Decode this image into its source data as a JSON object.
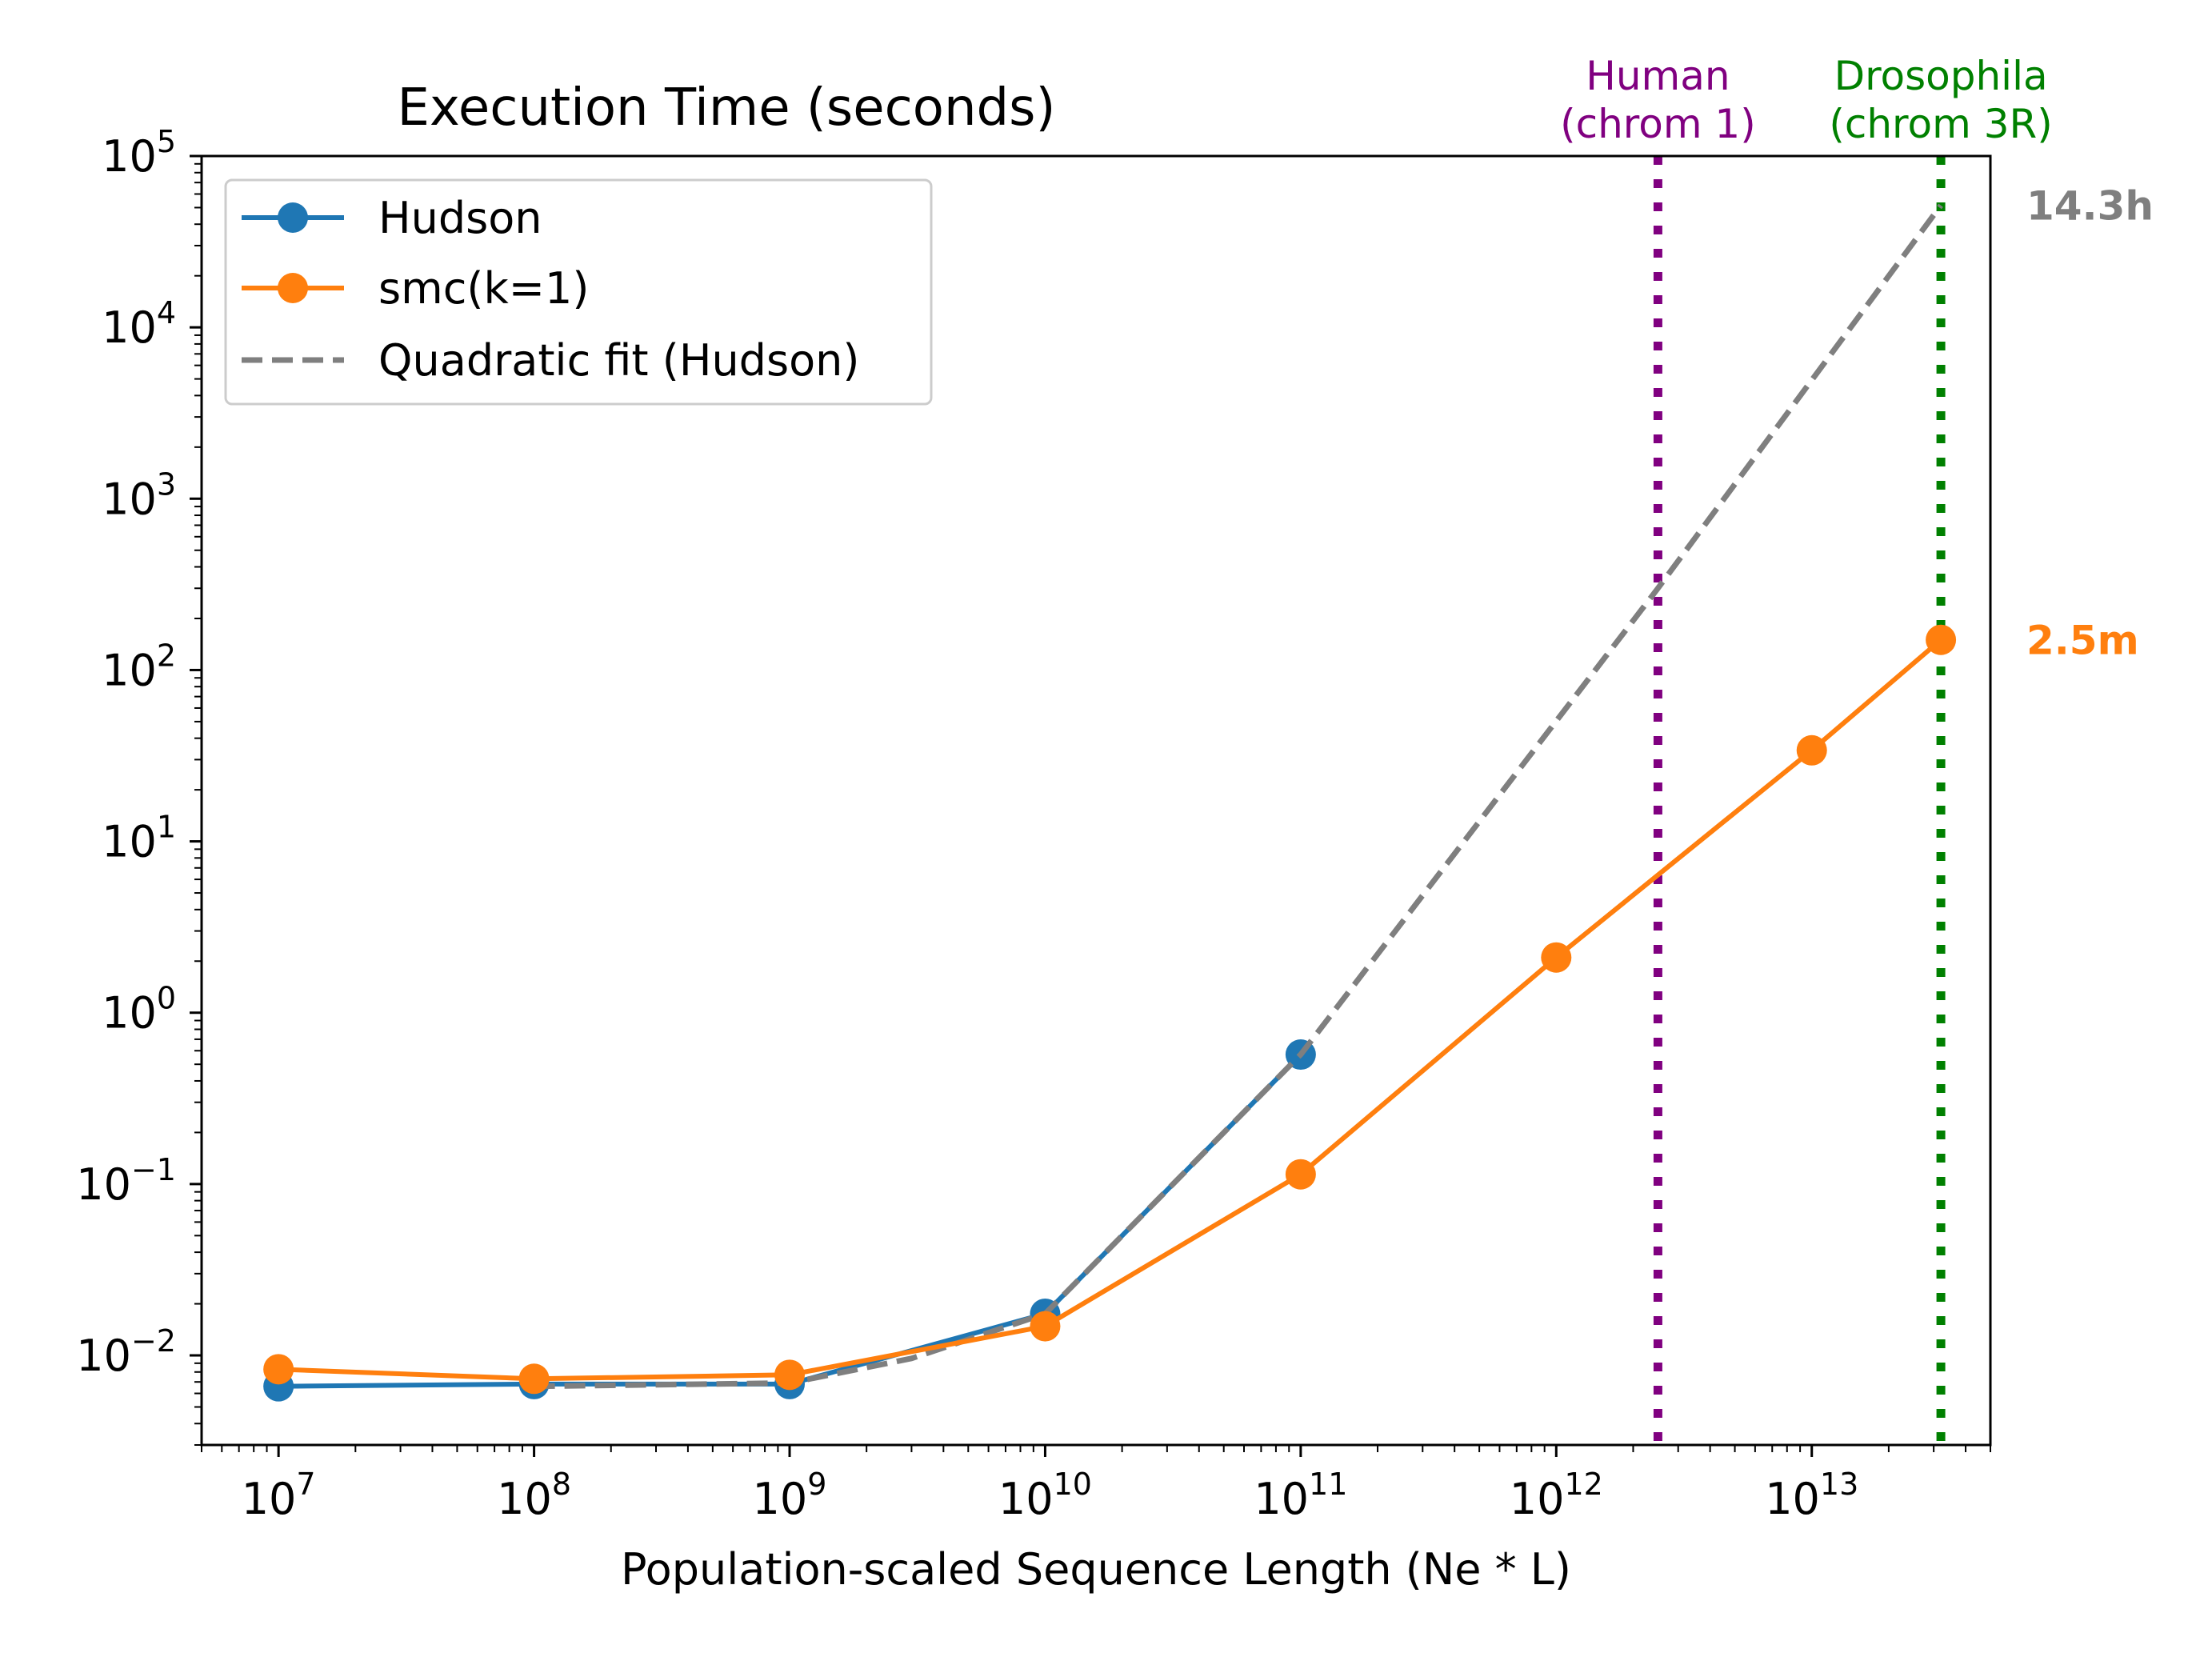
{
  "chart_data": {
    "type": "line",
    "title": "Execution Time (seconds)",
    "xlabel": "Population-scaled Sequence Length (Ne * L)",
    "ylabel": "",
    "xscale": "log",
    "yscale": "log",
    "xlim": [
      5000000,
      50000000000000
    ],
    "ylim": [
      0.003,
      100000
    ],
    "x_ticks": [
      {
        "base": "10",
        "exp": "7",
        "value": 10000000
      },
      {
        "base": "10",
        "exp": "8",
        "value": 100000000
      },
      {
        "base": "10",
        "exp": "9",
        "value": 1000000000
      },
      {
        "base": "10",
        "exp": "10",
        "value": 10000000000
      },
      {
        "base": "10",
        "exp": "11",
        "value": 100000000000
      },
      {
        "base": "10",
        "exp": "12",
        "value": 1000000000000
      },
      {
        "base": "10",
        "exp": "13",
        "value": 10000000000000
      }
    ],
    "y_ticks": [
      {
        "base": "10",
        "exp": "−2",
        "value": 0.01
      },
      {
        "base": "10",
        "exp": "−1",
        "value": 0.1
      },
      {
        "base": "10",
        "exp": "0",
        "value": 1
      },
      {
        "base": "10",
        "exp": "1",
        "value": 10
      },
      {
        "base": "10",
        "exp": "2",
        "value": 100
      },
      {
        "base": "10",
        "exp": "3",
        "value": 1000
      },
      {
        "base": "10",
        "exp": "4",
        "value": 10000
      },
      {
        "base": "10",
        "exp": "5",
        "value": 100000
      }
    ],
    "series": [
      {
        "name": "Hudson",
        "color": "#1f77b4",
        "style": "solid-markers",
        "x": [
          10000000,
          100000000,
          1000000000,
          10000000000,
          100000000000
        ],
        "y": [
          0.0066,
          0.0068,
          0.0068,
          0.0175,
          0.57
        ]
      },
      {
        "name": "smc(k=1)",
        "color": "#ff7f0e",
        "style": "solid-markers",
        "x": [
          10000000,
          100000000,
          1000000000,
          10000000000,
          100000000000,
          1000000000000,
          10000000000000,
          32000000000000
        ],
        "y": [
          0.0083,
          0.0073,
          0.0077,
          0.0148,
          0.114,
          2.1,
          34,
          150
        ]
      },
      {
        "name": "Quadratic fit (Hudson)",
        "color": "#7f7f7f",
        "style": "dashed",
        "x": [
          100000000,
          1000000000,
          3000000000,
          10000000000,
          100000000000,
          2500000000000,
          32000000000000
        ],
        "y": [
          0.0066,
          0.0069,
          0.0096,
          0.0175,
          0.57,
          300,
          51500
        ]
      }
    ],
    "vlines": [
      {
        "x": 2500000000000,
        "color": "#800080",
        "label_line1": "Human",
        "label_line2": "(chrom 1)"
      },
      {
        "x": 32000000000000,
        "color": "#008000",
        "label_line1": "Drosophila",
        "label_line2": "(chrom 3R)"
      }
    ],
    "annotations": [
      {
        "text": "14.3h",
        "y": 51500,
        "color": "#7f7f7f"
      },
      {
        "text": "2.5m",
        "y": 150,
        "color": "#ff7f0e"
      }
    ],
    "legend": {
      "placement": "upper-left",
      "entries": [
        "Hudson",
        "smc(k=1)",
        "Quadratic fit (Hudson)"
      ]
    }
  }
}
